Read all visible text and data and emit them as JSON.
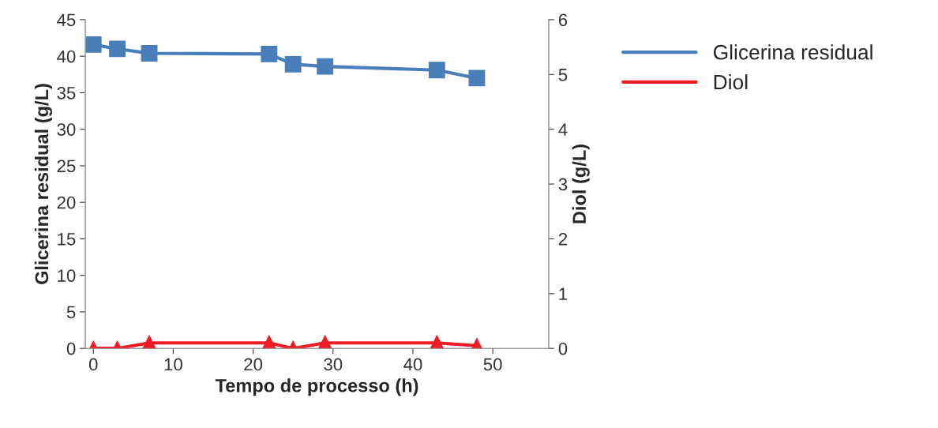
{
  "chart_data": {
    "type": "line",
    "xlabel": "Tempo de processo (h)",
    "ylabel": "Glicerina residual (g/L)",
    "y2label": "Diol (g/L)",
    "x": [
      0,
      3,
      7,
      22,
      25,
      29,
      43,
      48
    ],
    "series": [
      {
        "name": "Glicerina residual",
        "color": "#4a7ebb",
        "marker": "square",
        "values": [
          41.6,
          41.0,
          40.4,
          40.3,
          38.9,
          38.6,
          38.1,
          37.0
        ]
      },
      {
        "name": "Diol",
        "color": "#ee1c25",
        "marker": "triangle",
        "axis": "y2",
        "values": [
          0,
          0,
          0.1,
          0.1,
          0,
          0.1,
          0.1,
          0.05
        ]
      }
    ],
    "xlim": [
      -1,
      57
    ],
    "xticks": [
      0,
      10,
      20,
      30,
      40,
      50
    ],
    "ylim": [
      0,
      45
    ],
    "yticks": [
      0,
      5,
      10,
      15,
      20,
      25,
      30,
      35,
      40,
      45
    ],
    "y2lim": [
      0,
      6
    ],
    "y2ticks": [
      0,
      1,
      2,
      3,
      4,
      5,
      6
    ],
    "legend": "right",
    "grid": false
  }
}
